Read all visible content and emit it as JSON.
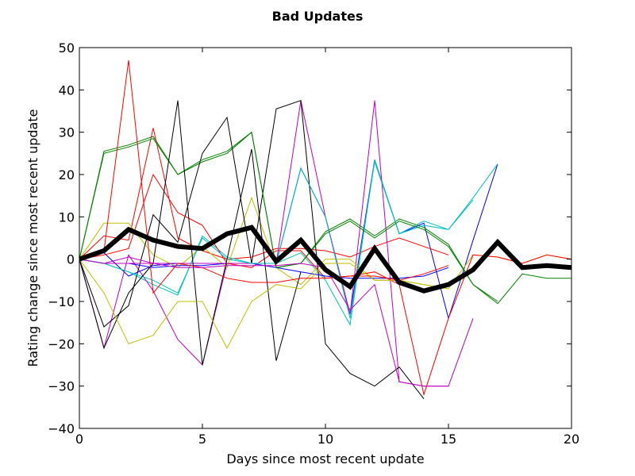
{
  "chart_data": {
    "type": "line",
    "title": "Bad Updates",
    "xlabel": "Days since most recent update",
    "ylabel": "Rating change since most recent update",
    "xlim": [
      0,
      20
    ],
    "ylim": [
      -40,
      50
    ],
    "xticks": [
      0,
      5,
      10,
      15,
      20
    ],
    "yticks": [
      -40,
      -30,
      -20,
      -10,
      0,
      10,
      20,
      30,
      40,
      50
    ],
    "grid": false,
    "series": [
      {
        "color": "#0000ff",
        "width": 1,
        "x": [
          0,
          1,
          2,
          3,
          4,
          5,
          6,
          7,
          8,
          9,
          10,
          11,
          12,
          13,
          14,
          15,
          16,
          17
        ],
        "y": [
          0,
          1.5,
          -4,
          -1.5,
          -1,
          -1,
          -1,
          -1,
          -1,
          21.5,
          10,
          -13,
          23.5,
          6,
          8.5,
          -14,
          4.5,
          22.5
        ]
      },
      {
        "color": "#008000",
        "width": 1,
        "x": [
          0,
          1,
          2,
          3,
          4,
          5,
          6,
          7,
          8,
          9,
          10,
          11,
          12,
          13,
          14,
          15,
          16,
          17,
          18,
          19,
          20
        ],
        "y": [
          0,
          25.5,
          27,
          29,
          20,
          23,
          25,
          30,
          -2,
          -1,
          6.5,
          9.5,
          5.5,
          9.5,
          7.5,
          3.5,
          -6,
          -10.5,
          -3.5,
          -4.5,
          -4.5
        ]
      },
      {
        "color": "#ff0000",
        "width": 1,
        "x": [
          0,
          1,
          2,
          3,
          4,
          5,
          6,
          7,
          8,
          9,
          10,
          11,
          12,
          13,
          14,
          15
        ],
        "y": [
          0,
          5.5,
          4.5,
          31,
          5,
          2,
          0,
          0.5,
          2.5,
          2.5,
          2,
          0.5,
          3,
          5,
          3,
          1
        ]
      },
      {
        "color": "#00bfbf",
        "width": 1,
        "x": [
          0,
          1,
          2,
          3,
          4,
          5,
          6,
          7,
          8,
          9,
          10,
          11,
          12,
          13,
          14,
          15,
          16,
          17
        ],
        "y": [
          0,
          -1,
          -3,
          -6,
          -8.5,
          5.5,
          0.5,
          -1,
          -1,
          1.5,
          -5,
          -15.5,
          23.5,
          6,
          9,
          7,
          14.5,
          22.5
        ]
      },
      {
        "color": "#bf00bf",
        "width": 1,
        "x": [
          0,
          1,
          2,
          3,
          4,
          5,
          6,
          7,
          8,
          9,
          10,
          11,
          12,
          13,
          14,
          15
        ],
        "y": [
          0,
          -21,
          1,
          -7.5,
          -19,
          -25,
          -1,
          -1,
          -1,
          37.5,
          10,
          -13,
          37.5,
          -29,
          -30,
          -30
        ]
      },
      {
        "color": "#bfbf00",
        "width": 1,
        "x": [
          0,
          1,
          2,
          3,
          4,
          5,
          6,
          7,
          8,
          9,
          10,
          11,
          12,
          13,
          14,
          15,
          16,
          17,
          18,
          19,
          20
        ],
        "y": [
          0,
          8.5,
          8.5,
          1,
          -2,
          3,
          -2,
          14.5,
          -2,
          -6,
          0,
          0,
          -5,
          -5,
          -6,
          -7,
          1,
          0.5,
          -1,
          1,
          0
        ]
      },
      {
        "color": "#000000",
        "width": 1,
        "x": [
          0,
          1,
          2,
          3,
          4,
          5,
          6,
          7,
          8,
          9,
          10,
          11,
          12,
          13,
          14
        ],
        "y": [
          0,
          -16,
          -11,
          10.5,
          4,
          25,
          33.5,
          -1,
          35.5,
          37.5,
          -20,
          -27,
          -30,
          -25.5,
          -33
        ]
      },
      {
        "color": "#ff0000",
        "width": 1,
        "x": [
          0,
          1,
          2,
          3,
          4,
          5,
          6,
          7,
          8,
          9,
          10,
          11,
          12,
          13,
          14,
          15,
          16,
          17,
          18,
          19,
          20
        ],
        "y": [
          0,
          1,
          2.5,
          20,
          11,
          8,
          -1,
          -2,
          2,
          2,
          -4.5,
          -4,
          -3,
          -6,
          -32,
          -14,
          1,
          0.5,
          -1,
          1,
          0
        ]
      },
      {
        "color": "#0000ff",
        "width": 1,
        "x": [
          0,
          1,
          2,
          3,
          4,
          5,
          6,
          7,
          8,
          9,
          10,
          11,
          12,
          13,
          14,
          15
        ],
        "y": [
          0,
          -1,
          -1,
          -2,
          -1.5,
          -1.5,
          -1,
          -1,
          -2,
          -3,
          -4,
          -4.5,
          -4.5,
          -4.5,
          -4,
          -2
        ]
      },
      {
        "color": "#bf00bf",
        "width": 1,
        "x": [
          0,
          1,
          2,
          3,
          4,
          5,
          6,
          7,
          8
        ],
        "y": [
          0,
          -1,
          -1,
          -1,
          -1,
          -1,
          -1,
          -1,
          -1
        ]
      },
      {
        "color": "#00bfbf",
        "width": 1,
        "x": [
          0,
          1,
          2,
          3,
          4,
          5,
          6,
          7,
          8,
          9,
          10,
          11,
          12,
          13,
          14,
          15,
          16
        ],
        "y": [
          0,
          -1,
          -3,
          -5,
          -8,
          5,
          0,
          -1,
          -1,
          21.5,
          10,
          -14,
          23,
          6,
          8,
          7,
          14
        ]
      },
      {
        "color": "#008000",
        "width": 1,
        "x": [
          0,
          1,
          2,
          3,
          4,
          5,
          6,
          7,
          8,
          9,
          10,
          11,
          12,
          13,
          14,
          15,
          16,
          17
        ],
        "y": [
          0,
          25,
          26.5,
          28.5,
          20,
          23.5,
          25.5,
          30,
          -2,
          -1,
          6,
          9,
          5,
          9,
          7,
          3,
          -6,
          -10
        ]
      },
      {
        "color": "#000000",
        "width": 1,
        "x": [
          0,
          1,
          2,
          3,
          4,
          5,
          6,
          7,
          8,
          9
        ],
        "y": [
          0,
          -21,
          -8,
          -1,
          37.5,
          -25,
          0,
          26,
          -24,
          -3
        ]
      },
      {
        "color": "#bfbf00",
        "width": 1,
        "x": [
          0,
          1,
          2,
          3,
          4,
          5,
          6,
          7,
          8,
          9,
          10,
          11,
          12,
          13,
          14,
          15
        ],
        "y": [
          0,
          -8,
          -20,
          -18,
          -10,
          -10,
          -21,
          -10,
          -6,
          -7,
          -1,
          -1,
          -5,
          -5,
          -6,
          -7
        ]
      },
      {
        "color": "#ff0000",
        "width": 1,
        "x": [
          0,
          1,
          2,
          3,
          4,
          5,
          6,
          7,
          8,
          9,
          10,
          11,
          12,
          13,
          14,
          15
        ],
        "y": [
          0,
          2,
          47,
          -8,
          -1,
          -2,
          -4.5,
          -5.5,
          -5.5,
          -4.5,
          -4.5,
          -4,
          -4,
          -5,
          -3.5,
          -1.5
        ]
      },
      {
        "color": "#bf00bf",
        "width": 1,
        "x": [
          0,
          1,
          2,
          3,
          4,
          5,
          6,
          7,
          8,
          9,
          10,
          11,
          12,
          13,
          14,
          15,
          16
        ],
        "y": [
          0,
          -1,
          0.5,
          -1,
          -2,
          -2,
          -1.5,
          -1.5,
          -1.5,
          -1,
          -2,
          -12,
          -6,
          -29,
          -30,
          -30,
          -14
        ]
      },
      {
        "color": "#000000",
        "width": 6,
        "x": [
          0,
          1,
          2,
          3,
          4,
          5,
          6,
          7,
          8,
          9,
          10,
          11,
          12,
          13,
          14,
          15,
          16,
          17,
          18,
          19,
          20
        ],
        "y": [
          0,
          2,
          7,
          4.5,
          3,
          2.5,
          6,
          7.5,
          -0.5,
          4.5,
          -2.5,
          -6.5,
          2.5,
          -5.5,
          -7.5,
          -6,
          -2.5,
          4,
          -2,
          -1.5,
          -2
        ]
      }
    ]
  }
}
